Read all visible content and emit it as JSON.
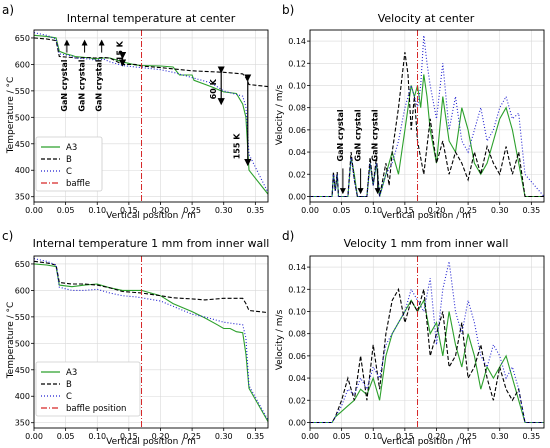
{
  "figure": {
    "legend_colors": {
      "A3": "#2ca02c",
      "B": "#000000",
      "C": "#1f1fd0",
      "baffle": "#d62728"
    }
  },
  "chart_data": [
    {
      "panel_label": "a)",
      "type": "line",
      "title": "Internal temperature at center",
      "xlabel": "Vertical position / m",
      "ylabel": "Temperature / °C",
      "xlim": [
        0.0,
        0.37
      ],
      "ylim": [
        340,
        665
      ],
      "xticks": [
        0.0,
        0.05,
        0.1,
        0.15,
        0.2,
        0.25,
        0.3,
        0.35
      ],
      "xtick_labels": [
        "0.00",
        "0.05",
        "0.10",
        "0.15",
        "0.20",
        "0.25",
        "0.30",
        "0.35"
      ],
      "yticks": [
        350,
        400,
        450,
        500,
        550,
        600,
        650
      ],
      "ytick_labels": [
        "350",
        "400",
        "450",
        "500",
        "550",
        "600",
        "650"
      ],
      "grid": true,
      "legend": {
        "placement": "bottom-left",
        "entries": [
          "A3",
          "B",
          "C",
          "baffle"
        ]
      },
      "baffle_x": 0.17,
      "series": [
        {
          "name": "A3",
          "style": "solid",
          "color": "#2ca02c",
          "x": [
            0,
            0.02,
            0.035,
            0.04,
            0.05,
            0.06,
            0.065,
            0.09,
            0.095,
            0.11,
            0.12,
            0.14,
            0.16,
            0.17,
            0.2,
            0.22,
            0.23,
            0.25,
            0.253,
            0.28,
            0.3,
            0.32,
            0.33,
            0.335,
            0.34,
            0.37
          ],
          "y": [
            655,
            653,
            650,
            625,
            620,
            617,
            615,
            612,
            610,
            612,
            612,
            605,
            599,
            598,
            597,
            595,
            580,
            580,
            570,
            558,
            548,
            545,
            525,
            500,
            400,
            355
          ]
        },
        {
          "name": "B",
          "style": "dashed",
          "color": "#000000",
          "x": [
            0,
            0.02,
            0.035,
            0.04,
            0.05,
            0.06,
            0.065,
            0.09,
            0.095,
            0.11,
            0.12,
            0.14,
            0.16,
            0.17,
            0.2,
            0.25,
            0.3,
            0.33,
            0.335,
            0.34,
            0.37
          ],
          "y": [
            650,
            648,
            645,
            615,
            614,
            613,
            612,
            613,
            612,
            613,
            612,
            600,
            600,
            597,
            594,
            588,
            585,
            582,
            575,
            562,
            558
          ]
        },
        {
          "name": "C",
          "style": "dotted",
          "color": "#1f1fd0",
          "x": [
            0,
            0.02,
            0.035,
            0.04,
            0.05,
            0.06,
            0.065,
            0.09,
            0.095,
            0.11,
            0.12,
            0.14,
            0.16,
            0.17,
            0.2,
            0.22,
            0.25,
            0.28,
            0.3,
            0.33,
            0.335,
            0.34,
            0.37
          ],
          "y": [
            660,
            655,
            648,
            620,
            618,
            616,
            612,
            610,
            608,
            610,
            605,
            598,
            595,
            594,
            590,
            585,
            575,
            565,
            550,
            540,
            520,
            430,
            358
          ]
        }
      ],
      "annotations": [
        {
          "text": "GaN crystal",
          "x": 0.052,
          "y": 560
        },
        {
          "text": "GaN crystal",
          "x": 0.08,
          "y": 560
        },
        {
          "text": "GaN crystal",
          "x": 0.107,
          "y": 560
        },
        {
          "text": "15 K",
          "x": 0.14,
          "y": 625
        },
        {
          "text": "60 K",
          "x": 0.288,
          "y": 553
        },
        {
          "text": "155 K",
          "x": 0.325,
          "y": 445
        }
      ]
    },
    {
      "panel_label": "b)",
      "type": "line",
      "title": "Velocity at center",
      "xlabel": "Vertical position / m",
      "ylabel": "Velocity / m/s",
      "xlim": [
        0.0,
        0.37
      ],
      "ylim": [
        -0.005,
        0.15
      ],
      "xticks": [
        0.0,
        0.05,
        0.1,
        0.15,
        0.2,
        0.25,
        0.3,
        0.35
      ],
      "xtick_labels": [
        "0.00",
        "0.05",
        "0.10",
        "0.15",
        "0.20",
        "0.25",
        "0.30",
        "0.35"
      ],
      "yticks": [
        0.0,
        0.02,
        0.04,
        0.06,
        0.08,
        0.1,
        0.12,
        0.14
      ],
      "ytick_labels": [
        "0.00",
        "0.02",
        "0.04",
        "0.06",
        "0.08",
        "0.10",
        "0.12",
        "0.14"
      ],
      "grid": true,
      "baffle_x": 0.17,
      "series": [
        {
          "name": "A3",
          "style": "solid",
          "color": "#2ca02c",
          "x": [
            0,
            0.035,
            0.037,
            0.04,
            0.043,
            0.045,
            0.06,
            0.065,
            0.07,
            0.075,
            0.09,
            0.095,
            0.1,
            0.105,
            0.11,
            0.12,
            0.13,
            0.14,
            0.15,
            0.16,
            0.165,
            0.17,
            0.175,
            0.18,
            0.185,
            0.19,
            0.2,
            0.21,
            0.22,
            0.23,
            0.24,
            0.25,
            0.26,
            0.27,
            0.28,
            0.29,
            0.3,
            0.31,
            0.32,
            0.33,
            0.34,
            0.37
          ],
          "y": [
            0,
            0,
            0.02,
            0.005,
            0.02,
            0,
            0,
            0.035,
            0.02,
            0,
            0,
            0.03,
            0.01,
            0.03,
            0,
            0.02,
            0.04,
            0.02,
            0.06,
            0.1,
            0.09,
            0.1,
            0.08,
            0.11,
            0.09,
            0.06,
            0.03,
            0.09,
            0.05,
            0.04,
            0.08,
            0.06,
            0.03,
            0.02,
            0.03,
            0.05,
            0.07,
            0.08,
            0.06,
            0.03,
            0,
            0
          ]
        },
        {
          "name": "B",
          "style": "dashed",
          "color": "#000000",
          "x": [
            0,
            0.035,
            0.037,
            0.04,
            0.043,
            0.045,
            0.06,
            0.065,
            0.07,
            0.075,
            0.09,
            0.095,
            0.1,
            0.105,
            0.11,
            0.12,
            0.125,
            0.13,
            0.14,
            0.15,
            0.155,
            0.16,
            0.165,
            0.17,
            0.18,
            0.19,
            0.2,
            0.21,
            0.22,
            0.23,
            0.24,
            0.25,
            0.26,
            0.27,
            0.28,
            0.29,
            0.3,
            0.31,
            0.32,
            0.33,
            0.34,
            0.37
          ],
          "y": [
            0,
            0,
            0.022,
            0.005,
            0.022,
            0,
            0,
            0.04,
            0.015,
            0,
            0,
            0.035,
            0.01,
            0.035,
            0,
            0.03,
            0.01,
            0.04,
            0.08,
            0.13,
            0.11,
            0.06,
            0.09,
            0.05,
            0.02,
            0.07,
            0.03,
            0.05,
            0.02,
            0.04,
            0.03,
            0.015,
            0.04,
            0.02,
            0.045,
            0.03,
            0.02,
            0.045,
            0.02,
            0.04,
            0,
            0
          ]
        },
        {
          "name": "C",
          "style": "dotted",
          "color": "#1f1fd0",
          "x": [
            0,
            0.035,
            0.037,
            0.04,
            0.043,
            0.045,
            0.06,
            0.065,
            0.07,
            0.075,
            0.09,
            0.095,
            0.1,
            0.105,
            0.11,
            0.12,
            0.13,
            0.14,
            0.15,
            0.16,
            0.17,
            0.175,
            0.18,
            0.185,
            0.19,
            0.2,
            0.21,
            0.22,
            0.23,
            0.24,
            0.25,
            0.26,
            0.27,
            0.28,
            0.29,
            0.3,
            0.31,
            0.32,
            0.33,
            0.34,
            0.37
          ],
          "y": [
            0,
            0,
            0.02,
            0.005,
            0.02,
            0,
            0,
            0.035,
            0.015,
            0,
            0,
            0.03,
            0.01,
            0.03,
            0,
            0.02,
            0.03,
            0.05,
            0.08,
            0.1,
            0.08,
            0.1,
            0.145,
            0.12,
            0.1,
            0.07,
            0.12,
            0.06,
            0.09,
            0.05,
            0.04,
            0.06,
            0.08,
            0.05,
            0.06,
            0.08,
            0.09,
            0.07,
            0.075,
            0.02,
            0
          ]
        }
      ],
      "annotations": [
        {
          "text": "GaN crystal",
          "x": 0.052,
          "y": 0.055
        },
        {
          "text": "GaN crystal",
          "x": 0.08,
          "y": 0.055
        },
        {
          "text": "GaN crystal",
          "x": 0.107,
          "y": 0.055
        }
      ]
    },
    {
      "panel_label": "c)",
      "type": "line",
      "title": "Internal temperature 1 mm from inner wall",
      "xlabel": "Vertical position / m",
      "ylabel": "Temperature / °C",
      "xlim": [
        0.0,
        0.37
      ],
      "ylim": [
        340,
        665
      ],
      "xticks": [
        0.0,
        0.05,
        0.1,
        0.15,
        0.2,
        0.25,
        0.3,
        0.35
      ],
      "xtick_labels": [
        "0.00",
        "0.05",
        "0.10",
        "0.15",
        "0.20",
        "0.25",
        "0.30",
        "0.35"
      ],
      "yticks": [
        350,
        400,
        450,
        500,
        550,
        600,
        650
      ],
      "ytick_labels": [
        "350",
        "400",
        "450",
        "500",
        "550",
        "600",
        "650"
      ],
      "grid": true,
      "legend": {
        "placement": "bottom-left",
        "entries": [
          "A3",
          "B",
          "C",
          "baffle position"
        ]
      },
      "baffle_x": 0.17,
      "series": [
        {
          "name": "A3",
          "style": "solid",
          "color": "#2ca02c",
          "x": [
            0,
            0.02,
            0.035,
            0.04,
            0.06,
            0.08,
            0.1,
            0.12,
            0.14,
            0.16,
            0.17,
            0.2,
            0.22,
            0.25,
            0.27,
            0.29,
            0.3,
            0.31,
            0.32,
            0.33,
            0.335,
            0.34,
            0.37
          ],
          "y": [
            650,
            648,
            645,
            610,
            607,
            610,
            612,
            605,
            600,
            600,
            600,
            590,
            575,
            560,
            548,
            535,
            528,
            528,
            522,
            520,
            480,
            415,
            352
          ]
        },
        {
          "name": "B",
          "style": "dashed",
          "color": "#000000",
          "x": [
            0,
            0.02,
            0.035,
            0.04,
            0.06,
            0.08,
            0.1,
            0.12,
            0.14,
            0.16,
            0.17,
            0.2,
            0.22,
            0.25,
            0.27,
            0.3,
            0.33,
            0.335,
            0.34,
            0.37
          ],
          "y": [
            655,
            652,
            648,
            615,
            612,
            612,
            610,
            605,
            598,
            596,
            595,
            590,
            586,
            584,
            582,
            585,
            585,
            575,
            562,
            558
          ]
        },
        {
          "name": "C",
          "style": "dotted",
          "color": "#1f1fd0",
          "x": [
            0,
            0.02,
            0.035,
            0.04,
            0.06,
            0.08,
            0.1,
            0.12,
            0.14,
            0.16,
            0.17,
            0.2,
            0.22,
            0.25,
            0.27,
            0.3,
            0.33,
            0.335,
            0.34,
            0.37
          ],
          "y": [
            660,
            655,
            648,
            606,
            600,
            600,
            602,
            595,
            590,
            588,
            586,
            580,
            570,
            555,
            550,
            540,
            535,
            510,
            420,
            355
          ]
        }
      ],
      "annotations": []
    },
    {
      "panel_label": "d)",
      "type": "line",
      "title": "Velocity 1 mm from inner wall",
      "xlabel": "Vertical position / m",
      "ylabel": "Velocity / m/s",
      "xlim": [
        0.0,
        0.37
      ],
      "ylim": [
        -0.005,
        0.15
      ],
      "xticks": [
        0.0,
        0.05,
        0.1,
        0.15,
        0.2,
        0.25,
        0.3,
        0.35
      ],
      "xtick_labels": [
        "0.00",
        "0.05",
        "0.10",
        "0.15",
        "0.20",
        "0.25",
        "0.30",
        "0.35"
      ],
      "yticks": [
        0.0,
        0.02,
        0.04,
        0.06,
        0.08,
        0.1,
        0.12,
        0.14
      ],
      "ytick_labels": [
        "0.00",
        "0.02",
        "0.04",
        "0.06",
        "0.08",
        "0.10",
        "0.12",
        "0.14"
      ],
      "grid": true,
      "baffle_x": 0.17,
      "series": [
        {
          "name": "A3",
          "style": "solid",
          "color": "#2ca02c",
          "x": [
            0,
            0.035,
            0.04,
            0.05,
            0.06,
            0.07,
            0.08,
            0.09,
            0.1,
            0.11,
            0.12,
            0.13,
            0.14,
            0.15,
            0.16,
            0.17,
            0.18,
            0.19,
            0.2,
            0.21,
            0.22,
            0.23,
            0.24,
            0.25,
            0.26,
            0.27,
            0.28,
            0.29,
            0.3,
            0.31,
            0.32,
            0.33,
            0.34,
            0.37
          ],
          "y": [
            0,
            0,
            0.005,
            0.01,
            0.015,
            0.02,
            0.03,
            0.025,
            0.04,
            0.02,
            0.06,
            0.08,
            0.09,
            0.1,
            0.11,
            0.1,
            0.11,
            0.08,
            0.09,
            0.06,
            0.1,
            0.07,
            0.05,
            0.08,
            0.06,
            0.03,
            0.05,
            0.04,
            0.05,
            0.06,
            0.04,
            0.02,
            0,
            0
          ]
        },
        {
          "name": "B",
          "style": "dashed",
          "color": "#000000",
          "x": [
            0,
            0.035,
            0.04,
            0.05,
            0.06,
            0.07,
            0.08,
            0.09,
            0.1,
            0.11,
            0.12,
            0.13,
            0.14,
            0.15,
            0.16,
            0.17,
            0.18,
            0.19,
            0.2,
            0.21,
            0.22,
            0.23,
            0.24,
            0.25,
            0.26,
            0.27,
            0.28,
            0.29,
            0.3,
            0.31,
            0.32,
            0.33,
            0.34,
            0.37
          ],
          "y": [
            0,
            0,
            0.005,
            0.02,
            0.04,
            0.02,
            0.06,
            0.02,
            0.07,
            0.03,
            0.08,
            0.11,
            0.12,
            0.09,
            0.11,
            0.1,
            0.12,
            0.06,
            0.08,
            0.1,
            0.05,
            0.06,
            0.09,
            0.04,
            0.05,
            0.07,
            0.04,
            0.02,
            0.05,
            0.03,
            0.02,
            0.03,
            0,
            0
          ]
        },
        {
          "name": "C",
          "style": "dotted",
          "color": "#1f1fd0",
          "x": [
            0,
            0.035,
            0.04,
            0.05,
            0.06,
            0.07,
            0.08,
            0.09,
            0.1,
            0.11,
            0.12,
            0.13,
            0.14,
            0.15,
            0.16,
            0.17,
            0.18,
            0.19,
            0.2,
            0.21,
            0.22,
            0.23,
            0.24,
            0.25,
            0.26,
            0.27,
            0.28,
            0.29,
            0.3,
            0.31,
            0.32,
            0.33,
            0.34,
            0.37
          ],
          "y": [
            0,
            0,
            0.005,
            0.015,
            0.03,
            0.025,
            0.04,
            0.03,
            0.05,
            0.04,
            0.07,
            0.08,
            0.09,
            0.1,
            0.12,
            0.11,
            0.1,
            0.13,
            0.07,
            0.12,
            0.145,
            0.1,
            0.08,
            0.11,
            0.09,
            0.06,
            0.05,
            0.07,
            0.06,
            0.04,
            0.05,
            0.03,
            0,
            0
          ]
        }
      ],
      "annotations": []
    }
  ]
}
